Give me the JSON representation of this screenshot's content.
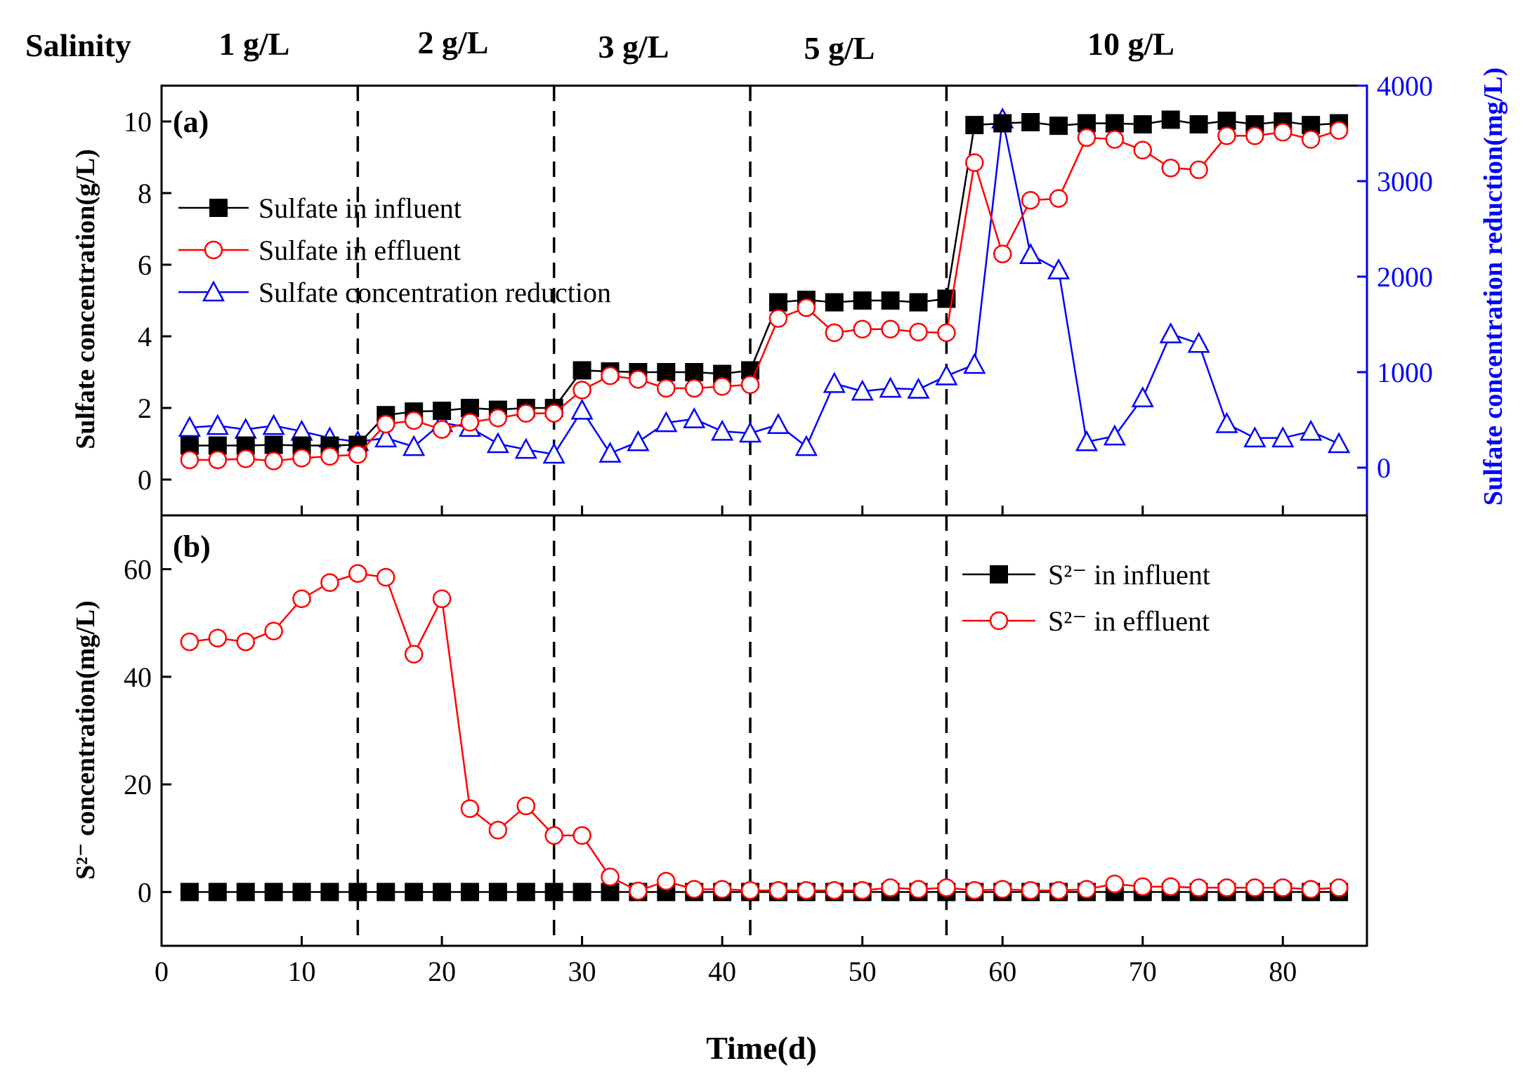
{
  "header": {
    "label": "Salinity",
    "stages": [
      "1 g/L",
      "2 g/L",
      "3 g/L",
      "5 g/L",
      "10 g/L"
    ]
  },
  "stage_boundaries": [
    14,
    28,
    42,
    56
  ],
  "colors": {
    "influent": "#000000",
    "effluent": "#ff0000",
    "reduction": "#0000ff",
    "axis": "#000000"
  },
  "chart_data": [
    {
      "type": "line",
      "panel_label": "(a)",
      "xlabel": "",
      "ylabel": "Sulfate concentration(g/L)",
      "y2label": "Sulfate concentration reduction(mg/L)",
      "xlim": [
        0,
        86
      ],
      "ylim": [
        -1,
        11
      ],
      "y2lim": [
        -500,
        4000
      ],
      "x_ticks": [
        0,
        10,
        20,
        30,
        40,
        50,
        60,
        70,
        80
      ],
      "y_ticks": [
        "0",
        "2",
        "4",
        "6",
        "8",
        "10"
      ],
      "y2_ticks": [
        "0",
        "1000",
        "2000",
        "3000",
        "4000"
      ],
      "legend_position": "upper-left",
      "series": [
        {
          "name": "Sulfate in influent",
          "axis": "left",
          "marker": "square",
          "color": "#000000",
          "x": [
            2,
            4,
            6,
            8,
            10,
            12,
            14,
            16,
            18,
            20,
            22,
            24,
            26,
            28,
            30,
            32,
            34,
            36,
            38,
            40,
            42,
            44,
            46,
            48,
            50,
            52,
            54,
            56,
            58,
            60,
            62,
            64,
            66,
            68,
            70,
            72,
            74,
            76,
            78,
            80,
            82,
            84
          ],
          "values": [
            0.95,
            0.95,
            0.95,
            0.97,
            0.95,
            0.95,
            0.97,
            1.8,
            1.9,
            1.92,
            2.0,
            1.95,
            2.0,
            2.0,
            3.05,
            3.02,
            3.0,
            3.0,
            3.0,
            2.95,
            3.05,
            4.95,
            5.02,
            4.95,
            5.0,
            5.0,
            4.95,
            5.05,
            9.9,
            9.95,
            9.98,
            9.88,
            9.95,
            9.95,
            9.92,
            10.05,
            9.92,
            10.02,
            9.92,
            10.0,
            9.9,
            9.95
          ]
        },
        {
          "name": "Sulfate in effluent",
          "axis": "left",
          "marker": "circle",
          "color": "#ff0000",
          "x": [
            2,
            4,
            6,
            8,
            10,
            12,
            14,
            16,
            18,
            20,
            22,
            24,
            26,
            28,
            30,
            32,
            34,
            36,
            38,
            40,
            42,
            44,
            46,
            48,
            50,
            52,
            54,
            56,
            58,
            60,
            62,
            64,
            66,
            68,
            70,
            72,
            74,
            76,
            78,
            80,
            82,
            84
          ],
          "values": [
            0.55,
            0.55,
            0.58,
            0.52,
            0.6,
            0.65,
            0.7,
            1.55,
            1.65,
            1.4,
            1.6,
            1.72,
            1.85,
            1.85,
            2.5,
            2.9,
            2.8,
            2.55,
            2.55,
            2.6,
            2.65,
            4.5,
            4.8,
            4.1,
            4.2,
            4.2,
            4.12,
            4.1,
            8.85,
            6.3,
            7.8,
            7.85,
            9.55,
            9.5,
            9.2,
            8.7,
            8.65,
            9.6,
            9.6,
            9.7,
            9.5,
            9.75
          ]
        },
        {
          "name": "Sulfate concentration reduction",
          "axis": "right",
          "marker": "triangle",
          "color": "#0000ff",
          "x": [
            2,
            4,
            6,
            8,
            10,
            12,
            14,
            16,
            18,
            20,
            22,
            24,
            26,
            28,
            30,
            32,
            34,
            36,
            38,
            40,
            42,
            44,
            46,
            48,
            50,
            52,
            54,
            56,
            58,
            60,
            62,
            64,
            66,
            68,
            70,
            72,
            74,
            76,
            78,
            80,
            82,
            84
          ],
          "values": [
            420,
            440,
            400,
            440,
            380,
            310,
            270,
            310,
            220,
            470,
            420,
            250,
            190,
            140,
            600,
            150,
            270,
            470,
            510,
            380,
            360,
            450,
            220,
            880,
            800,
            830,
            820,
            960,
            1080,
            3650,
            2230,
            2070,
            270,
            330,
            730,
            1400,
            1300,
            460,
            310,
            310,
            380,
            250
          ]
        }
      ]
    },
    {
      "type": "line",
      "panel_label": "(b)",
      "xlabel": "Time(d)",
      "ylabel": "S²⁻ concentration(mg/L)",
      "xlim": [
        0,
        86
      ],
      "ylim": [
        -10,
        70
      ],
      "x_ticks": [
        0,
        10,
        20,
        30,
        40,
        50,
        60,
        70,
        80
      ],
      "y_ticks": [
        "0",
        "20",
        "40",
        "60"
      ],
      "legend_position": "upper-right",
      "series": [
        {
          "name": "S²⁻ in influent",
          "axis": "left",
          "marker": "square",
          "color": "#000000",
          "x": [
            2,
            4,
            6,
            8,
            10,
            12,
            14,
            16,
            18,
            20,
            22,
            24,
            26,
            28,
            30,
            32,
            34,
            36,
            38,
            40,
            42,
            44,
            46,
            48,
            50,
            52,
            54,
            56,
            58,
            60,
            62,
            64,
            66,
            68,
            70,
            72,
            74,
            76,
            78,
            80,
            82,
            84
          ],
          "values": [
            0,
            0,
            0,
            0,
            0,
            0,
            0,
            0,
            0,
            0,
            0,
            0,
            0,
            0,
            0,
            0,
            0,
            0,
            0,
            0,
            0,
            0,
            0,
            0,
            0,
            0,
            0,
            0,
            0,
            0,
            0,
            0,
            0,
            0,
            0,
            0,
            0,
            0,
            0,
            0,
            0,
            0
          ]
        },
        {
          "name": "S²⁻ in effluent",
          "axis": "left",
          "marker": "circle",
          "color": "#ff0000",
          "x": [
            2,
            4,
            6,
            8,
            10,
            12,
            14,
            16,
            18,
            20,
            22,
            24,
            26,
            28,
            30,
            32,
            34,
            36,
            38,
            40,
            42,
            44,
            46,
            48,
            50,
            52,
            54,
            56,
            58,
            60,
            62,
            64,
            66,
            68,
            70,
            72,
            74,
            76,
            78,
            80,
            82,
            84
          ],
          "values": [
            46.5,
            47.2,
            46.5,
            48.5,
            54.5,
            57.5,
            59.2,
            58.5,
            44.2,
            54.5,
            15.5,
            11.5,
            16.0,
            10.5,
            10.5,
            2.8,
            0.2,
            2.0,
            0.5,
            0.5,
            0.3,
            0.3,
            0.3,
            0.3,
            0.3,
            0.8,
            0.5,
            0.8,
            0.3,
            0.5,
            0.3,
            0.3,
            0.5,
            1.5,
            1.0,
            1.0,
            0.8,
            0.8,
            0.8,
            0.8,
            0.5,
            0.8
          ]
        }
      ]
    }
  ]
}
